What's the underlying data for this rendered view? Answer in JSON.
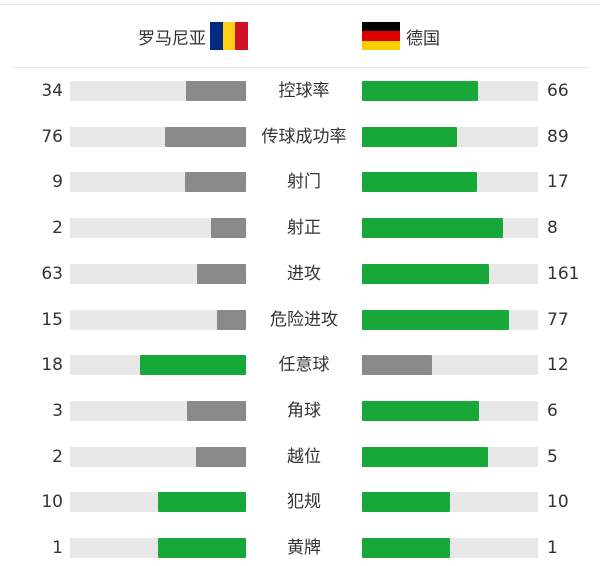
{
  "home_team": {
    "name": "罗马尼亚",
    "flag_colors": [
      "#002B7F",
      "#FCD116",
      "#CE1126"
    ]
  },
  "away_team": {
    "name": "德国",
    "flag_colors": [
      "#000000",
      "#DD0000",
      "#FFCE00"
    ]
  },
  "colors": {
    "leader": "#18a83a",
    "trailer": "#8a8a8a",
    "track": "#e8e8e8"
  },
  "stats": [
    {
      "label": "控球率",
      "home": "34",
      "away": "66"
    },
    {
      "label": "传球成功率",
      "home": "76",
      "away": "89"
    },
    {
      "label": "射门",
      "home": "9",
      "away": "17"
    },
    {
      "label": "射正",
      "home": "2",
      "away": "8"
    },
    {
      "label": "进攻",
      "home": "63",
      "away": "161"
    },
    {
      "label": "危险进攻",
      "home": "15",
      "away": "77"
    },
    {
      "label": "任意球",
      "home": "18",
      "away": "12"
    },
    {
      "label": "角球",
      "home": "3",
      "away": "6"
    },
    {
      "label": "越位",
      "home": "2",
      "away": "5"
    },
    {
      "label": "犯规",
      "home": "10",
      "away": "10"
    },
    {
      "label": "黄牌",
      "home": "1",
      "away": "1"
    }
  ]
}
